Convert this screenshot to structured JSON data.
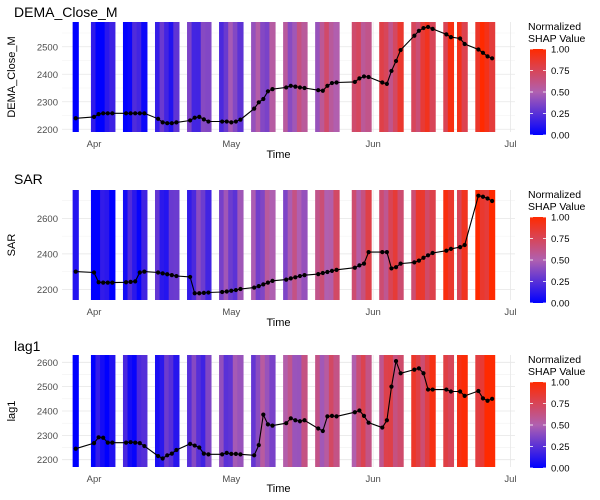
{
  "legend": {
    "title_line1": "Normalized",
    "title_line2": "SHAP Value",
    "tick_labels": [
      "0.00",
      "0.25",
      "0.50",
      "0.75",
      "1.00"
    ],
    "colors": {
      "low": "#0000ff",
      "mid": "#b060b0",
      "high": "#ff2a00"
    }
  },
  "chart_data": [
    {
      "type": "line",
      "title": "DEMA_Close_M",
      "xlabel": "Time",
      "ylabel": "DEMA_Close_M",
      "x_ticks": [
        "Apr",
        "May",
        "Jun",
        "Jul"
      ],
      "y_ticks": [
        2200,
        2300,
        2400,
        2500
      ],
      "ylim": [
        2190,
        2590
      ],
      "background": "vertical SHAP-colored bands behind line",
      "series": [
        {
          "x": [
            "2024-03-28",
            "2024-04-01",
            "2024-04-02",
            "2024-04-03",
            "2024-04-04",
            "2024-04-05",
            "2024-04-08",
            "2024-04-09",
            "2024-04-10",
            "2024-04-11",
            "2024-04-12",
            "2024-04-15",
            "2024-04-16",
            "2024-04-17",
            "2024-04-18",
            "2024-04-19",
            "2024-04-22",
            "2024-04-23",
            "2024-04-24",
            "2024-04-25",
            "2024-04-26",
            "2024-04-29",
            "2024-04-30",
            "2024-05-01",
            "2024-05-02",
            "2024-05-03",
            "2024-05-06",
            "2024-05-07",
            "2024-05-08",
            "2024-05-09",
            "2024-05-10",
            "2024-05-13",
            "2024-05-14",
            "2024-05-15",
            "2024-05-16",
            "2024-05-17",
            "2024-05-20",
            "2024-05-21",
            "2024-05-22",
            "2024-05-23",
            "2024-05-24",
            "2024-05-28",
            "2024-05-29",
            "2024-05-30",
            "2024-05-31",
            "2024-06-03",
            "2024-06-04",
            "2024-06-05",
            "2024-06-06",
            "2024-06-07",
            "2024-06-10",
            "2024-06-11",
            "2024-06-12",
            "2024-06-13",
            "2024-06-14",
            "2024-06-17",
            "2024-06-18",
            "2024-06-20",
            "2024-06-21",
            "2024-06-24",
            "2024-06-25",
            "2024-06-26",
            "2024-06-27"
          ],
          "values": [
            2240,
            2245,
            2255,
            2258,
            2258,
            2258,
            2258,
            2258,
            2258,
            2258,
            2258,
            2238,
            2225,
            2222,
            2222,
            2225,
            2232,
            2242,
            2245,
            2236,
            2228,
            2228,
            2228,
            2225,
            2228,
            2235,
            2275,
            2298,
            2310,
            2338,
            2346,
            2352,
            2358,
            2355,
            2352,
            2350,
            2342,
            2340,
            2358,
            2368,
            2370,
            2372,
            2385,
            2392,
            2390,
            2370,
            2365,
            2412,
            2448,
            2488,
            2540,
            2558,
            2568,
            2572,
            2565,
            2545,
            2535,
            2530,
            2510,
            2490,
            2478,
            2465,
            2458
          ]
        }
      ]
    },
    {
      "type": "line",
      "title": "SAR",
      "xlabel": "Time",
      "ylabel": "SAR",
      "x_ticks": [
        "Apr",
        "May",
        "Jun",
        "Jul"
      ],
      "y_ticks": [
        2200,
        2400,
        2600
      ],
      "ylim": [
        2140,
        2760
      ],
      "background": "vertical SHAP-colored bands behind line",
      "series": [
        {
          "x": [
            "2024-03-28",
            "2024-04-01",
            "2024-04-02",
            "2024-04-03",
            "2024-04-04",
            "2024-04-05",
            "2024-04-08",
            "2024-04-09",
            "2024-04-10",
            "2024-04-11",
            "2024-04-12",
            "2024-04-15",
            "2024-04-16",
            "2024-04-17",
            "2024-04-18",
            "2024-04-19",
            "2024-04-22",
            "2024-04-23",
            "2024-04-24",
            "2024-04-25",
            "2024-04-26",
            "2024-04-29",
            "2024-04-30",
            "2024-05-01",
            "2024-05-02",
            "2024-05-03",
            "2024-05-06",
            "2024-05-07",
            "2024-05-08",
            "2024-05-09",
            "2024-05-10",
            "2024-05-13",
            "2024-05-14",
            "2024-05-15",
            "2024-05-16",
            "2024-05-17",
            "2024-05-20",
            "2024-05-21",
            "2024-05-22",
            "2024-05-23",
            "2024-05-24",
            "2024-05-28",
            "2024-05-29",
            "2024-05-30",
            "2024-05-31",
            "2024-06-03",
            "2024-06-04",
            "2024-06-05",
            "2024-06-06",
            "2024-06-07",
            "2024-06-10",
            "2024-06-11",
            "2024-06-12",
            "2024-06-13",
            "2024-06-14",
            "2024-06-17",
            "2024-06-18",
            "2024-06-20",
            "2024-06-21",
            "2024-06-24",
            "2024-06-25",
            "2024-06-26",
            "2024-06-27"
          ],
          "values": [
            2300,
            2295,
            2240,
            2238,
            2238,
            2238,
            2240,
            2242,
            2245,
            2295,
            2300,
            2295,
            2290,
            2285,
            2280,
            2275,
            2270,
            2178,
            2178,
            2180,
            2182,
            2185,
            2188,
            2192,
            2196,
            2202,
            2210,
            2218,
            2228,
            2238,
            2248,
            2255,
            2262,
            2268,
            2275,
            2280,
            2286,
            2292,
            2298,
            2304,
            2310,
            2322,
            2335,
            2345,
            2410,
            2410,
            2410,
            2318,
            2325,
            2345,
            2352,
            2362,
            2378,
            2392,
            2405,
            2418,
            2428,
            2438,
            2450,
            2728,
            2722,
            2712,
            2698
          ]
        }
      ]
    },
    {
      "type": "line",
      "title": "lag1",
      "xlabel": "Time",
      "ylabel": "lag1",
      "x_ticks": [
        "Apr",
        "May",
        "Jun",
        "Jul"
      ],
      "y_ticks": [
        2200,
        2300,
        2400,
        2500,
        2600
      ],
      "ylim": [
        2170,
        2630
      ],
      "background": "vertical SHAP-colored bands behind line",
      "series": [
        {
          "x": [
            "2024-03-28",
            "2024-04-01",
            "2024-04-02",
            "2024-04-03",
            "2024-04-04",
            "2024-04-05",
            "2024-04-08",
            "2024-04-09",
            "2024-04-10",
            "2024-04-11",
            "2024-04-12",
            "2024-04-15",
            "2024-04-16",
            "2024-04-17",
            "2024-04-18",
            "2024-04-19",
            "2024-04-22",
            "2024-04-23",
            "2024-04-24",
            "2024-04-25",
            "2024-04-26",
            "2024-04-29",
            "2024-04-30",
            "2024-05-01",
            "2024-05-02",
            "2024-05-03",
            "2024-05-06",
            "2024-05-07",
            "2024-05-08",
            "2024-05-09",
            "2024-05-10",
            "2024-05-13",
            "2024-05-14",
            "2024-05-15",
            "2024-05-16",
            "2024-05-17",
            "2024-05-20",
            "2024-05-21",
            "2024-05-22",
            "2024-05-23",
            "2024-05-24",
            "2024-05-28",
            "2024-05-29",
            "2024-05-30",
            "2024-05-31",
            "2024-06-03",
            "2024-06-04",
            "2024-06-05",
            "2024-06-06",
            "2024-06-07",
            "2024-06-10",
            "2024-06-11",
            "2024-06-12",
            "2024-06-13",
            "2024-06-14",
            "2024-06-17",
            "2024-06-18",
            "2024-06-20",
            "2024-06-21",
            "2024-06-24",
            "2024-06-25",
            "2024-06-26",
            "2024-06-27"
          ],
          "values": [
            2245,
            2268,
            2292,
            2290,
            2270,
            2270,
            2270,
            2272,
            2270,
            2268,
            2256,
            2215,
            2205,
            2218,
            2225,
            2240,
            2265,
            2258,
            2250,
            2225,
            2222,
            2222,
            2228,
            2224,
            2224,
            2222,
            2218,
            2260,
            2385,
            2345,
            2340,
            2350,
            2370,
            2362,
            2358,
            2362,
            2328,
            2318,
            2378,
            2380,
            2378,
            2395,
            2402,
            2380,
            2352,
            2332,
            2362,
            2500,
            2605,
            2555,
            2570,
            2575,
            2555,
            2488,
            2488,
            2488,
            2480,
            2480,
            2462,
            2482,
            2452,
            2442,
            2450
          ]
        }
      ]
    }
  ]
}
